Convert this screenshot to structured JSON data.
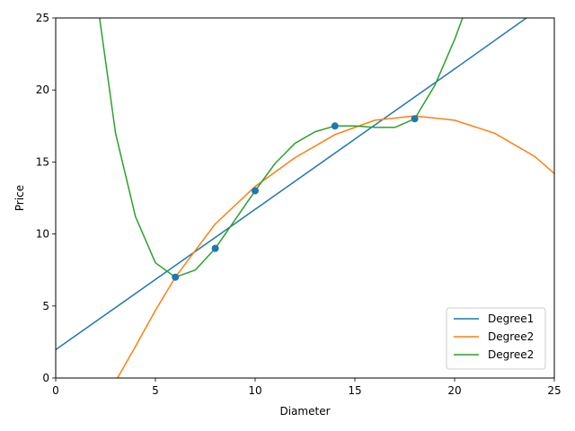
{
  "chart_data": {
    "type": "line",
    "title": "",
    "xlabel": "Diameter",
    "ylabel": "Price",
    "xlim": [
      0,
      25
    ],
    "ylim": [
      0,
      25
    ],
    "xticks": [
      0,
      5,
      10,
      15,
      20,
      25
    ],
    "yticks": [
      0,
      5,
      10,
      15,
      20,
      25
    ],
    "grid": false,
    "legend_position": "lower-right",
    "scatter": {
      "color": "#1f77b4",
      "x": [
        6,
        8,
        10,
        14,
        18
      ],
      "y": [
        7,
        9,
        13,
        17.5,
        18
      ]
    },
    "series": [
      {
        "name": "Degree1",
        "color": "#1f77b4",
        "x": [
          0,
          5,
          10,
          15,
          20,
          23.6
        ],
        "y": [
          1.97,
          6.84,
          11.71,
          16.59,
          21.46,
          25
        ]
      },
      {
        "name": "Degree2",
        "color": "#ff7f0e",
        "x": [
          3.1,
          4,
          5,
          6,
          8,
          10,
          12,
          14,
          16,
          18,
          20,
          22,
          24,
          25
        ],
        "y": [
          0,
          2.2,
          4.7,
          7.0,
          10.7,
          13.3,
          15.3,
          16.9,
          17.9,
          18.2,
          17.9,
          17.0,
          15.4,
          14.2
        ]
      },
      {
        "name": "Degree2",
        "color": "#2ca02c",
        "x": [
          2.2,
          3,
          4,
          5,
          6,
          7,
          8,
          9,
          10,
          11,
          12,
          13,
          14,
          15,
          16,
          17,
          18,
          19,
          20,
          20.4
        ],
        "y": [
          25,
          17.0,
          11.2,
          8.0,
          7.0,
          7.5,
          9.0,
          11.0,
          13.0,
          14.9,
          16.3,
          17.1,
          17.5,
          17.5,
          17.4,
          17.4,
          18.0,
          20.3,
          23.5,
          25
        ]
      }
    ]
  }
}
